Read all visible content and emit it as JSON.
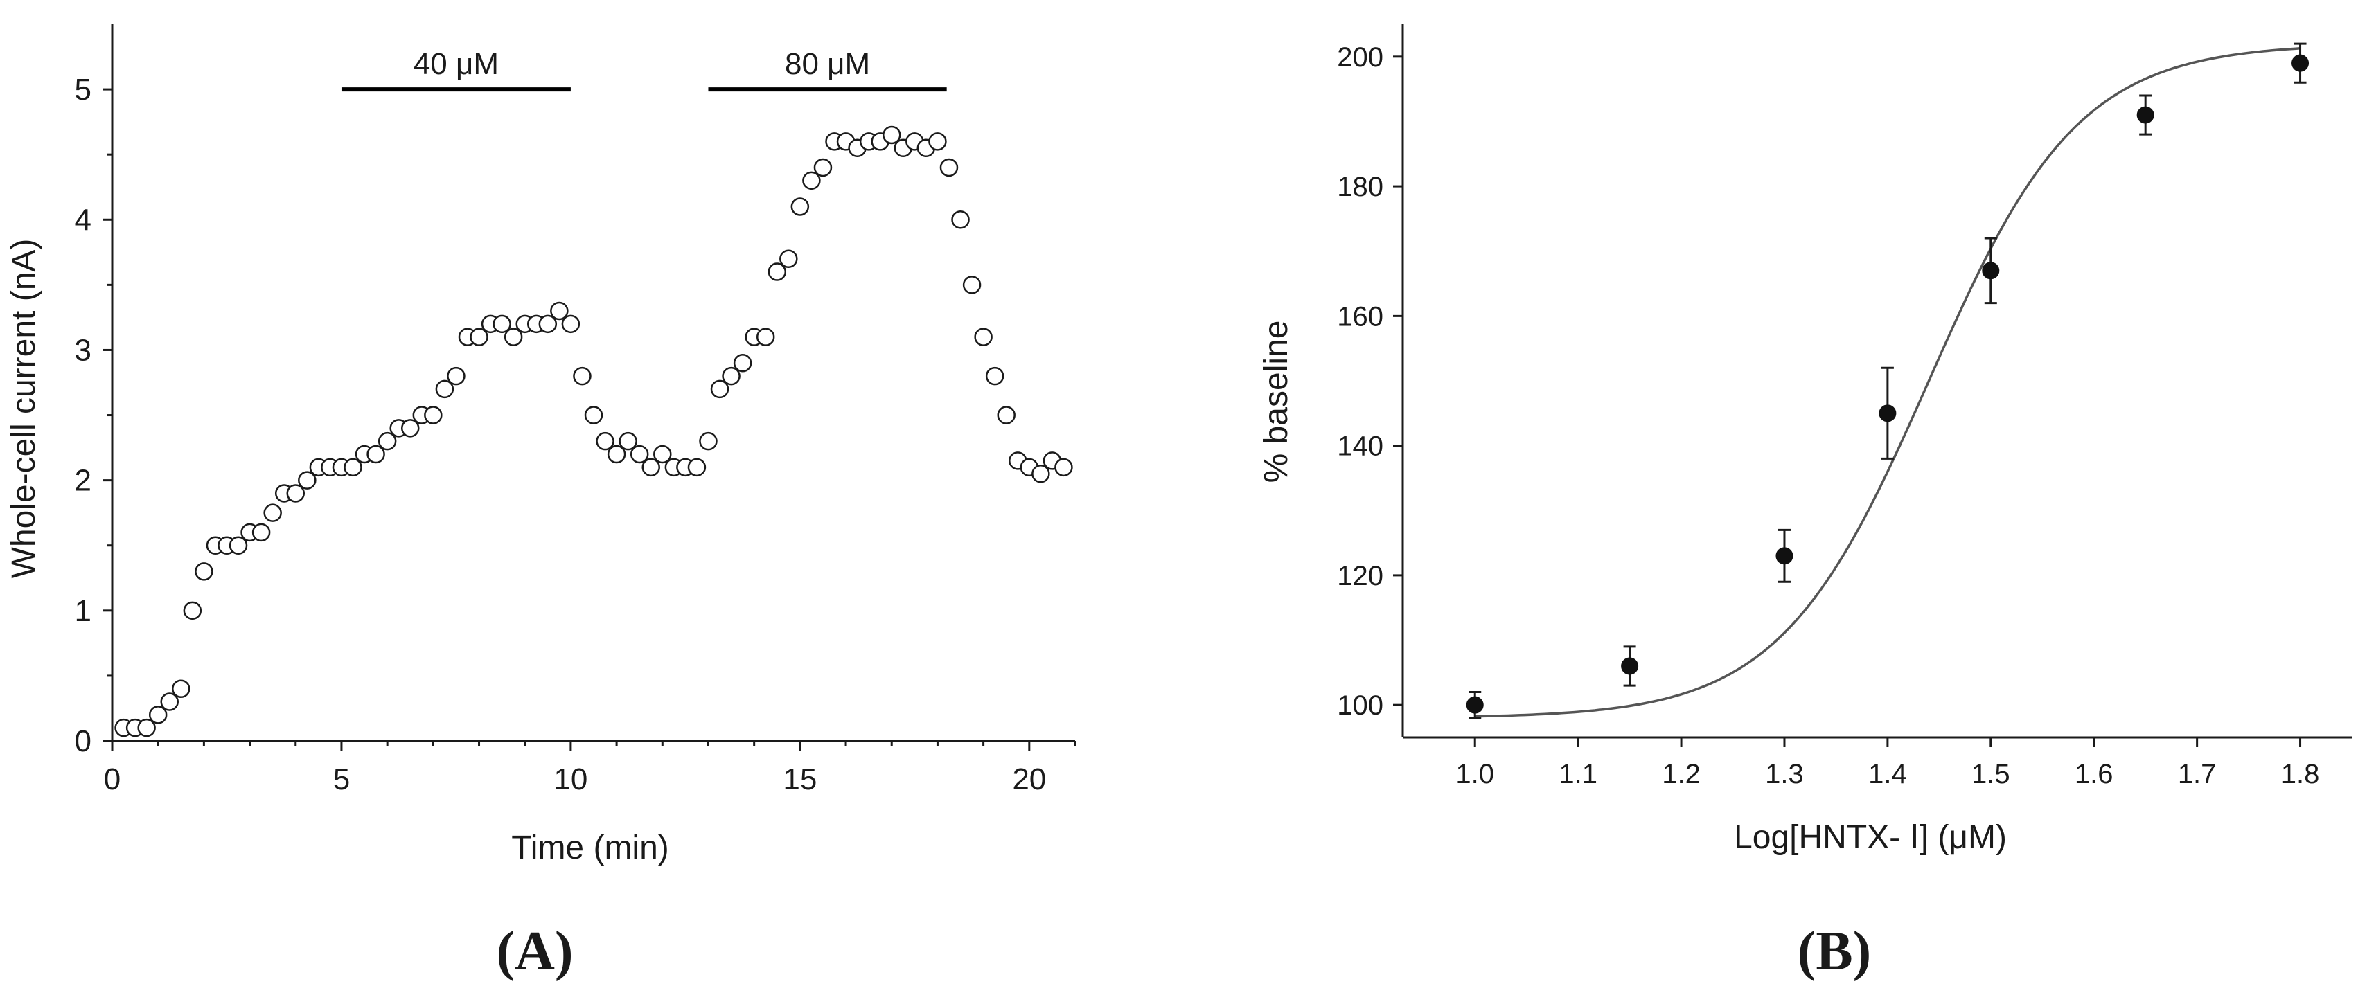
{
  "panels": {
    "a": {
      "label": "(A)"
    },
    "b": {
      "label": "(B)"
    }
  },
  "chart_data": [
    {
      "type": "scatter",
      "xlabel": "Time (min)",
      "ylabel": "Whole-cell current (nA)",
      "xlim": [
        0,
        21
      ],
      "ylim": [
        0,
        5.5
      ],
      "xticks": [
        0,
        5,
        10,
        15,
        20
      ],
      "yticks": [
        0,
        1,
        2,
        3,
        4,
        5
      ],
      "marker": "open-circle",
      "grid": false,
      "annotations": [
        {
          "text": "40 μM",
          "x_start": 5,
          "x_end": 10,
          "y": 5.0
        },
        {
          "text": "80 μM",
          "x_start": 13,
          "x_end": 18.2,
          "y": 5.0
        }
      ],
      "series": [
        {
          "x": [
            0.25,
            0.5,
            0.75,
            1.0,
            1.25,
            1.5,
            1.75,
            2.0,
            2.25,
            2.5,
            2.75,
            3.0,
            3.25,
            3.5,
            3.75,
            4.0,
            4.25,
            4.5,
            4.75,
            5.0,
            5.25,
            5.5,
            5.75,
            6.0,
            6.25,
            6.5,
            6.75,
            7.0,
            7.25,
            7.5,
            7.75,
            8.0,
            8.25,
            8.5,
            8.75,
            9.0,
            9.25,
            9.5,
            9.75,
            10.0,
            10.25,
            10.5,
            10.75,
            11.0,
            11.25,
            11.5,
            11.75,
            12.0,
            12.25,
            12.5,
            12.75,
            13.0,
            13.25,
            13.5,
            13.75,
            14.0,
            14.25,
            14.5,
            14.75,
            15.0,
            15.25,
            15.5,
            15.75,
            16.0,
            16.25,
            16.5,
            16.75,
            17.0,
            17.25,
            17.5,
            17.75,
            18.0,
            18.25,
            18.5,
            18.75,
            19.0,
            19.25,
            19.5,
            19.75,
            20.0,
            20.25,
            20.5,
            20.75
          ],
          "y": [
            0.1,
            0.1,
            0.1,
            0.2,
            0.3,
            0.4,
            1.0,
            1.3,
            1.5,
            1.5,
            1.5,
            1.6,
            1.6,
            1.75,
            1.9,
            1.9,
            2.0,
            2.1,
            2.1,
            2.1,
            2.1,
            2.2,
            2.2,
            2.3,
            2.4,
            2.4,
            2.5,
            2.5,
            2.7,
            2.8,
            3.1,
            3.1,
            3.2,
            3.2,
            3.1,
            3.2,
            3.2,
            3.2,
            3.3,
            3.2,
            2.8,
            2.5,
            2.3,
            2.2,
            2.3,
            2.2,
            2.1,
            2.2,
            2.1,
            2.1,
            2.1,
            2.3,
            2.7,
            2.8,
            2.9,
            3.1,
            3.1,
            3.6,
            3.7,
            4.1,
            4.3,
            4.4,
            4.6,
            4.6,
            4.55,
            4.6,
            4.6,
            4.65,
            4.55,
            4.6,
            4.55,
            4.6,
            4.4,
            4.0,
            3.5,
            3.1,
            2.8,
            2.5,
            2.15,
            2.1,
            2.05,
            2.15,
            2.1
          ]
        }
      ]
    },
    {
      "type": "scatter",
      "xlabel": "Log[HNTX- Ⅰ] (μM)",
      "ylabel": "% baseline",
      "xlim": [
        0.93,
        1.85
      ],
      "ylim": [
        95,
        205
      ],
      "xticks": [
        "1.0",
        "1.1",
        "1.2",
        "1.3",
        "1.4",
        "1.5",
        "1.6",
        "1.7",
        "1.8"
      ],
      "yticks": [
        "100",
        "120",
        "140",
        "160",
        "180",
        "200"
      ],
      "marker": "filled-circle",
      "error_bars": true,
      "fit_curve": {
        "type": "sigmoid",
        "bottom": 98,
        "top": 202,
        "logEC50": 1.44,
        "hill_slope": 6.0
      },
      "grid": false,
      "series": [
        {
          "x": [
            1.0,
            1.15,
            1.3,
            1.4,
            1.5,
            1.65,
            1.8
          ],
          "y": [
            100,
            106,
            123,
            145,
            167,
            191,
            199
          ],
          "error": [
            2,
            3,
            4,
            7,
            5,
            3,
            3
          ]
        }
      ]
    }
  ]
}
